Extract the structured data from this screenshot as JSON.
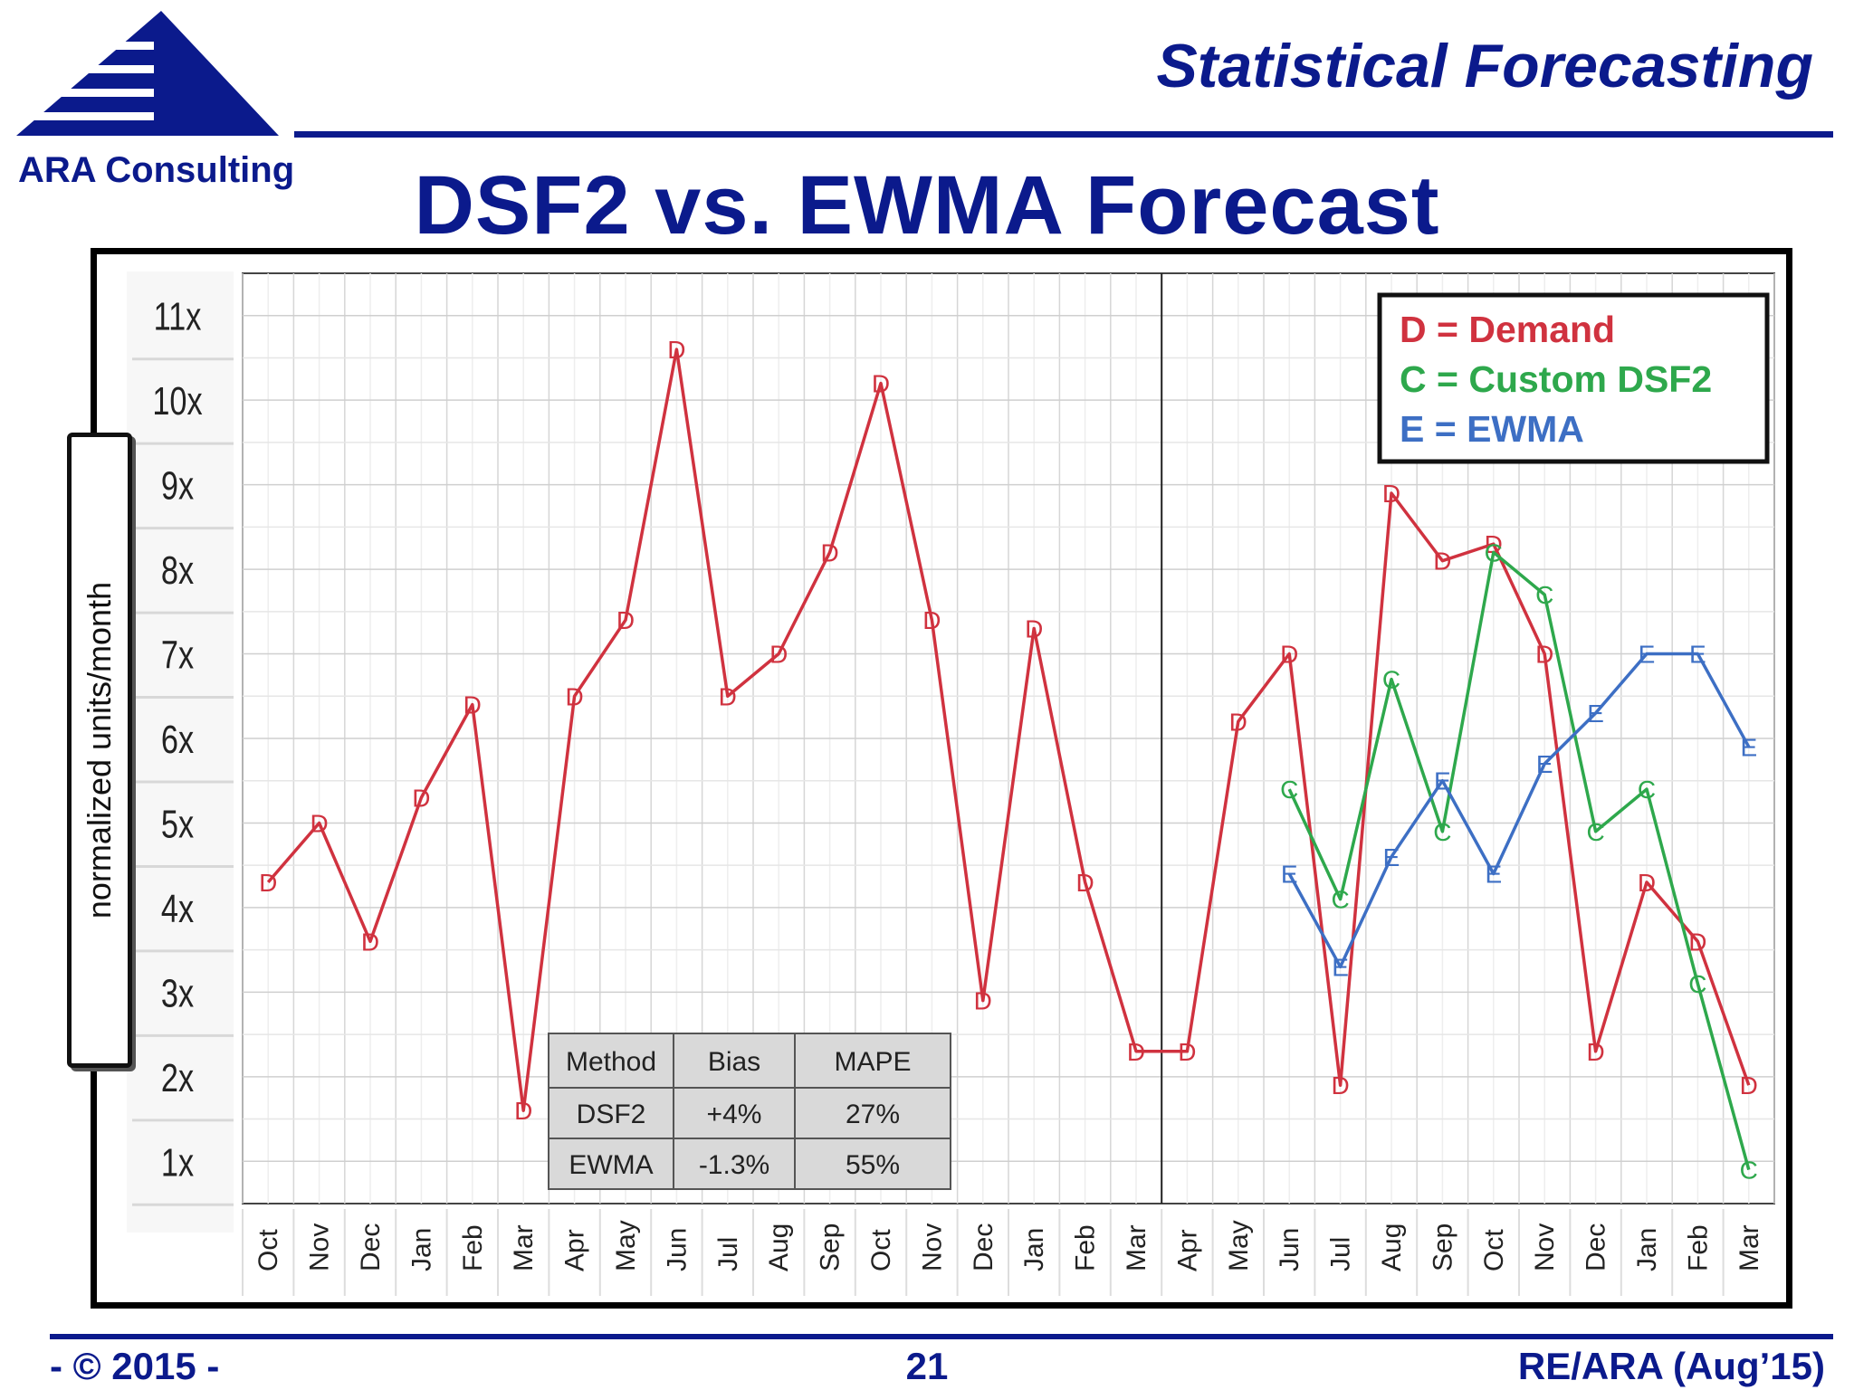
{
  "header": {
    "company": "ARA Consulting",
    "section_title": "Statistical Forecasting",
    "title": "DSF2 vs. EWMA Forecast"
  },
  "colors": {
    "brand": "#0b1a8c",
    "demand": "#d0323f",
    "dsf2": "#2ea84c",
    "ewma": "#3d6fc4"
  },
  "legend": {
    "demand": "D = Demand",
    "dsf2": "C = Custom DSF2",
    "ewma": "E = EWMA"
  },
  "table": {
    "headers": [
      "Method",
      "Bias",
      "MAPE"
    ],
    "rows": [
      [
        "DSF2",
        "+4%",
        "27%"
      ],
      [
        "EWMA",
        "-1.3%",
        "55%"
      ]
    ]
  },
  "chart_data": {
    "type": "line",
    "ylabel": "normalized units/month",
    "ylim": [
      0.5,
      11.5
    ],
    "y_ticks": [
      "1x",
      "2x",
      "3x",
      "4x",
      "5x",
      "6x",
      "7x",
      "8x",
      "9x",
      "10x",
      "11x"
    ],
    "categories": [
      "Oct",
      "Nov",
      "Dec",
      "Jan",
      "Feb",
      "Mar",
      "Apr",
      "May",
      "Jun",
      "Jul",
      "Aug",
      "Sep",
      "Oct",
      "Nov",
      "Dec",
      "Jan",
      "Feb",
      "Mar",
      "Apr",
      "May",
      "Jun",
      "Jul",
      "Aug",
      "Sep",
      "Oct",
      "Nov",
      "Dec",
      "Jan",
      "Feb",
      "Mar"
    ],
    "divider_after_index": 17,
    "series": [
      {
        "name": "Demand",
        "marker": "D",
        "values": [
          4.3,
          5.0,
          3.6,
          5.3,
          6.4,
          1.6,
          6.5,
          7.4,
          10.6,
          6.5,
          7.0,
          8.2,
          10.2,
          7.4,
          2.9,
          7.3,
          4.3,
          2.3,
          2.3,
          6.2,
          7.0,
          1.9,
          8.9,
          8.1,
          8.3,
          7.0,
          2.3,
          4.3,
          3.6,
          1.9
        ]
      },
      {
        "name": "Custom DSF2",
        "marker": "C",
        "values": [
          null,
          null,
          null,
          null,
          null,
          null,
          null,
          null,
          null,
          null,
          null,
          null,
          null,
          null,
          null,
          null,
          null,
          null,
          null,
          null,
          5.4,
          4.1,
          6.7,
          4.9,
          8.2,
          7.7,
          4.9,
          5.4,
          3.1,
          0.9
        ]
      },
      {
        "name": "EWMA",
        "marker": "E",
        "values": [
          null,
          null,
          null,
          null,
          null,
          null,
          null,
          null,
          null,
          null,
          null,
          null,
          null,
          null,
          null,
          null,
          null,
          null,
          null,
          null,
          4.4,
          3.3,
          4.6,
          5.5,
          4.4,
          5.7,
          6.3,
          7.0,
          7.0,
          5.9
        ]
      }
    ]
  },
  "footer": {
    "left": "- © 2015 -",
    "center": "21",
    "right": "RE/ARA (Aug’15)"
  }
}
